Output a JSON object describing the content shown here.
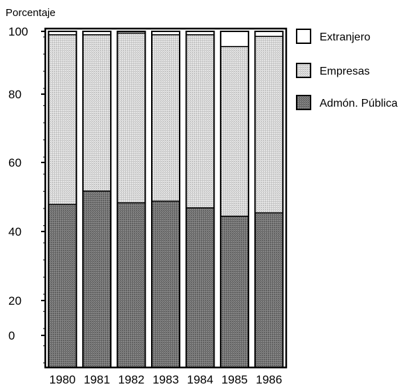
{
  "chart_data": {
    "type": "bar",
    "stacked": true,
    "percent": true,
    "title": "",
    "ylabel": "Porcentaje",
    "xlabel": "",
    "categories": [
      "1980",
      "1981",
      "1982",
      "1983",
      "1984",
      "1985",
      "1986"
    ],
    "ytick_labels": [
      "0",
      "20",
      "40",
      "60",
      "80",
      "100"
    ],
    "ylim": [
      0,
      100
    ],
    "grid": false,
    "legend_position": "right",
    "series": [
      {
        "name": "Admón. Pública",
        "values": [
          48.5,
          52.5,
          49.0,
          49.5,
          47.5,
          45.0,
          46.0
        ],
        "color": "#7a7a7a"
      },
      {
        "name": "Empresas",
        "values": [
          50.5,
          46.5,
          50.5,
          49.5,
          51.5,
          50.5,
          52.5
        ],
        "color": "#d2d2d2"
      },
      {
        "name": "Extranjero",
        "values": [
          1.0,
          1.0,
          0.5,
          1.0,
          1.0,
          4.5,
          1.5
        ],
        "color": "#ffffff"
      }
    ],
    "legend_order": [
      "Extranjero",
      "Empresas",
      "Admón. Pública"
    ]
  }
}
